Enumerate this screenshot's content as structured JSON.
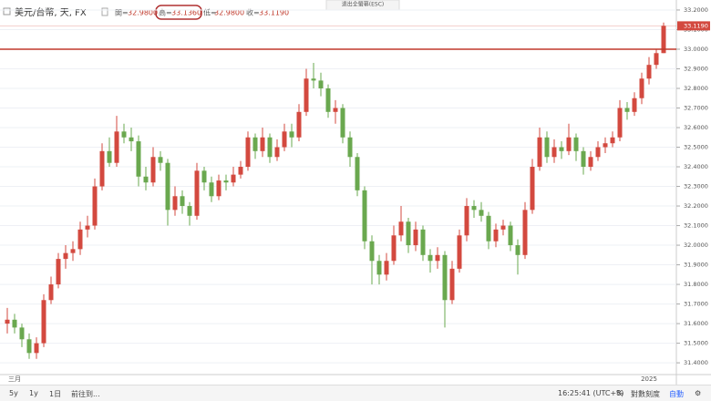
{
  "header": {
    "symbol": "美元/台幣, 天, FX",
    "open_label": "開=",
    "open": "32.9800",
    "high_label": "高=",
    "high": "33.1360",
    "low_label": "低=",
    "low": "32.9800",
    "close_label": "收=",
    "close": "33.1190",
    "fullscreen": "退出全螢幕(ESC)"
  },
  "toolbar": {
    "range_5y": "5y",
    "range_1y": "1y",
    "range_1d": "1日",
    "goto": "前往到...",
    "time": "16:25:41 (UTC+8)",
    "percent": "%",
    "log": "對數刻度",
    "auto": "自動"
  },
  "chart_data": {
    "type": "candlestick",
    "up_color": "#d3493f",
    "down_color": "#6aa84f",
    "grid": true,
    "categories": [
      null,
      "三月",
      null,
      null,
      null,
      null,
      null,
      null,
      null,
      null,
      null,
      null,
      null,
      null,
      null,
      null,
      null,
      null,
      null,
      null,
      null,
      null,
      null,
      null,
      null,
      null,
      null,
      null,
      null,
      null,
      null,
      null,
      null,
      null,
      null,
      null,
      null,
      null,
      null,
      null,
      null,
      null,
      null,
      null,
      null,
      null,
      null,
      null,
      null,
      null,
      null,
      null,
      null,
      null,
      null,
      null,
      null,
      null,
      null,
      null,
      null,
      null,
      null,
      null,
      null,
      null,
      null,
      null,
      null,
      null,
      null,
      null,
      null,
      null,
      null,
      null,
      null,
      null,
      null,
      null,
      null,
      null,
      null,
      null,
      null,
      null,
      null,
      null,
      "2025",
      null,
      null
    ],
    "open": [
      31.6,
      31.62,
      31.58,
      31.52,
      31.45,
      31.5,
      31.72,
      31.8,
      31.93,
      31.96,
      31.98,
      32.08,
      32.1,
      32.3,
      32.48,
      32.42,
      32.58,
      32.55,
      32.53,
      32.35,
      32.32,
      32.45,
      32.42,
      32.18,
      32.25,
      32.2,
      32.15,
      32.38,
      32.32,
      32.25,
      32.33,
      32.32,
      32.36,
      32.4,
      32.55,
      32.48,
      32.55,
      32.45,
      32.5,
      32.58,
      32.55,
      32.68,
      32.85,
      32.84,
      32.8,
      32.68,
      32.7,
      32.55,
      32.45,
      32.28,
      32.02,
      31.92,
      31.85,
      31.92,
      32.05,
      32.12,
      32.0,
      32.08,
      31.95,
      31.92,
      31.95,
      31.72,
      31.88,
      32.05,
      32.2,
      32.18,
      32.15,
      32.02,
      32.08,
      32.1,
      32.0,
      31.95,
      32.18,
      32.4,
      32.55,
      32.45,
      32.5,
      32.48,
      32.55,
      32.48,
      32.4,
      32.45,
      32.5,
      32.52,
      32.55,
      32.7,
      32.68,
      32.75,
      32.85,
      32.92,
      32.98
    ],
    "high": [
      31.68,
      31.65,
      31.6,
      31.55,
      31.53,
      31.75,
      31.84,
      31.96,
      32.0,
      32.02,
      32.12,
      32.15,
      32.34,
      32.52,
      32.55,
      32.66,
      32.62,
      32.6,
      32.56,
      32.4,
      32.5,
      32.48,
      32.44,
      32.3,
      32.28,
      32.22,
      32.42,
      32.4,
      32.35,
      32.36,
      32.36,
      32.4,
      32.43,
      32.58,
      32.57,
      32.6,
      32.57,
      32.54,
      32.62,
      32.62,
      32.72,
      32.9,
      32.93,
      32.88,
      32.82,
      32.74,
      32.72,
      32.58,
      32.47,
      32.3,
      32.05,
      31.95,
      31.96,
      32.1,
      32.2,
      32.14,
      32.12,
      32.1,
      31.98,
      31.99,
      31.97,
      31.92,
      32.08,
      32.24,
      32.23,
      32.22,
      32.17,
      32.11,
      32.13,
      32.12,
      32.03,
      32.22,
      32.44,
      32.6,
      32.58,
      32.54,
      32.53,
      32.62,
      32.57,
      32.5,
      32.48,
      32.53,
      32.55,
      32.58,
      32.74,
      32.73,
      32.78,
      32.88,
      32.96,
      33.0,
      33.136
    ],
    "low": [
      31.55,
      31.55,
      31.48,
      31.42,
      31.42,
      31.48,
      31.7,
      31.78,
      31.88,
      31.92,
      31.95,
      32.04,
      32.08,
      32.28,
      32.4,
      32.4,
      32.52,
      32.48,
      32.3,
      32.28,
      32.3,
      32.38,
      32.1,
      32.15,
      32.16,
      32.1,
      32.13,
      32.28,
      32.22,
      32.23,
      32.28,
      32.3,
      32.34,
      32.38,
      32.44,
      32.45,
      32.42,
      32.43,
      32.48,
      32.5,
      32.53,
      32.66,
      32.8,
      32.76,
      32.65,
      32.62,
      32.52,
      32.4,
      32.25,
      31.98,
      31.8,
      31.8,
      31.82,
      31.9,
      32.02,
      31.96,
      31.97,
      31.92,
      31.86,
      31.88,
      31.58,
      31.7,
      31.86,
      32.02,
      32.14,
      32.12,
      31.98,
      31.99,
      32.05,
      31.97,
      31.85,
      31.93,
      32.16,
      32.38,
      32.42,
      32.42,
      32.44,
      32.46,
      32.43,
      32.36,
      32.38,
      32.43,
      32.47,
      32.5,
      32.53,
      32.64,
      32.66,
      32.72,
      32.82,
      32.9,
      32.98
    ],
    "close": [
      31.62,
      31.58,
      31.52,
      31.45,
      31.5,
      31.72,
      31.8,
      31.93,
      31.96,
      31.98,
      32.08,
      32.1,
      32.3,
      32.48,
      32.42,
      32.58,
      32.55,
      32.53,
      32.35,
      32.32,
      32.45,
      32.42,
      32.18,
      32.25,
      32.2,
      32.15,
      32.38,
      32.32,
      32.25,
      32.33,
      32.32,
      32.36,
      32.4,
      32.55,
      32.48,
      32.55,
      32.45,
      32.5,
      32.58,
      32.55,
      32.68,
      32.85,
      32.84,
      32.8,
      32.68,
      32.7,
      32.55,
      32.45,
      32.28,
      32.02,
      31.92,
      31.85,
      31.92,
      32.05,
      32.12,
      32.0,
      32.08,
      31.95,
      31.92,
      31.95,
      31.72,
      31.88,
      32.05,
      32.2,
      32.18,
      32.15,
      32.02,
      32.08,
      32.1,
      32.0,
      31.95,
      32.18,
      32.4,
      32.55,
      32.45,
      32.5,
      32.48,
      32.55,
      32.48,
      32.4,
      32.45,
      32.5,
      32.52,
      32.55,
      32.7,
      32.68,
      32.75,
      32.85,
      32.92,
      32.98,
      33.119
    ],
    "ylim": [
      31.34,
      33.237
    ],
    "yticks": [
      {
        "value": 31.4,
        "label": "31.4000"
      },
      {
        "value": 31.5,
        "label": "31.5000"
      },
      {
        "value": 31.6,
        "label": "31.6000"
      },
      {
        "value": 31.7,
        "label": "31.7000"
      },
      {
        "value": 31.8,
        "label": "31.8000"
      },
      {
        "value": 31.9,
        "label": "31.9000"
      },
      {
        "value": 32.0,
        "label": "32.0000"
      },
      {
        "value": 32.1,
        "label": "32.1000"
      },
      {
        "value": 32.2,
        "label": "32.2000"
      },
      {
        "value": 32.3,
        "label": "32.3000"
      },
      {
        "value": 32.4,
        "label": "32.4000"
      },
      {
        "value": 32.5,
        "label": "32.5000"
      },
      {
        "value": 32.6,
        "label": "32.6000"
      },
      {
        "value": 32.7,
        "label": "32.7000"
      },
      {
        "value": 32.8,
        "label": "32.8000"
      },
      {
        "value": 32.9,
        "label": "32.9000"
      },
      {
        "value": 33.0,
        "label": "33.0000"
      },
      {
        "value": 33.1,
        "label": "33.1000"
      },
      {
        "value": 33.2,
        "label": "33.2000"
      }
    ],
    "price_line": {
      "value": 33.0,
      "color": "#c0392b"
    },
    "last_price": {
      "value": 33.119,
      "label": "33.1190",
      "color": "#d3493f"
    }
  }
}
